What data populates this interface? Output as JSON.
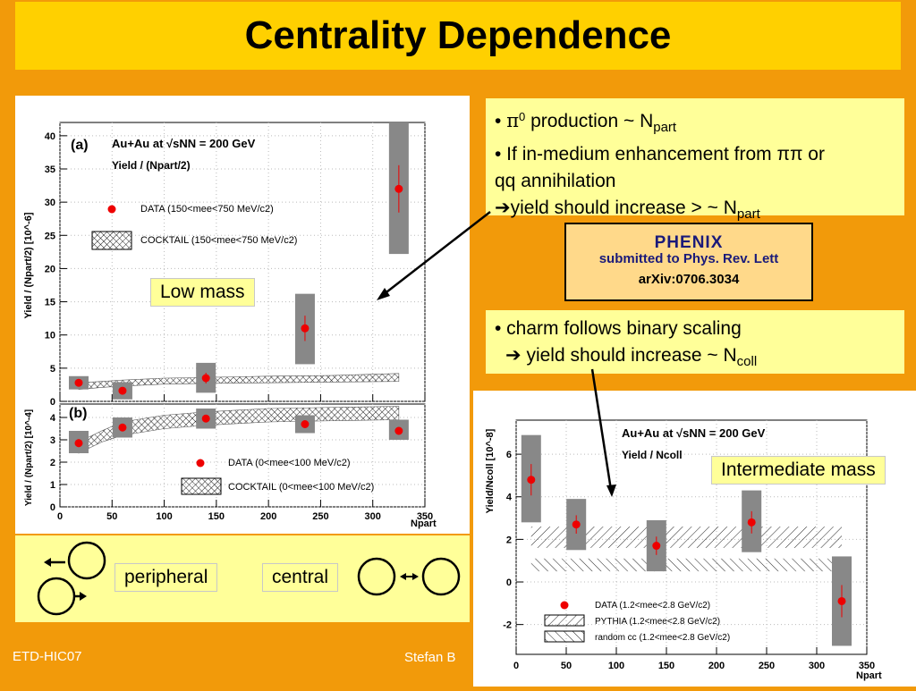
{
  "title": "Centrality Dependence",
  "bullets_top": {
    "line1_pre": "• ",
    "line1_pi": "π",
    "line1_sup": "0",
    "line1_text": " production ~ N",
    "line1_sub": "part",
    "line2": "• If in-medium enhancement from ππ or",
    "line3": "qq  annihilation",
    "line4_text": "yield should increase > ~ N",
    "line4_sub": "part"
  },
  "phenix": {
    "logo": "PHENIX",
    "line1": "submitted to Phys. Rev. Lett",
    "line2": "arXiv:0706.3034"
  },
  "bullets_charm": {
    "line1": "• charm follows binary scaling",
    "line2_text": " yield should increase ~ N",
    "line2_sub": "coll"
  },
  "labels": {
    "low_mass": "Low mass",
    "intermediate_mass": "Intermediate mass",
    "peripheral": "peripheral",
    "central": "central"
  },
  "footer": {
    "left": "ETD-HIC07",
    "center": "Stefan B"
  },
  "chart_data": [
    {
      "type": "scatter",
      "panel": "(a)",
      "header": "Au+Au at √sNN = 200 GeV",
      "subheader": "Yield / (Npart/2)",
      "ylabel": "Yield / (Npart/2) [10^-6]",
      "ylim": [
        0,
        42
      ],
      "yticks": [
        0,
        5,
        10,
        15,
        20,
        25,
        30,
        35,
        40
      ],
      "legend": [
        "DATA (150<mee<750 MeV/c2)",
        "COCKTAIL (150<mee<750 MeV/c2)"
      ],
      "points": [
        {
          "x": 18,
          "y": 2.8,
          "sys_lo": 1.8,
          "sys_hi": 3.8
        },
        {
          "x": 60,
          "y": 1.6,
          "sys_lo": 0.3,
          "sys_hi": 2.9
        },
        {
          "x": 140,
          "y": 3.5,
          "sys_lo": 1.3,
          "sys_hi": 5.8
        },
        {
          "x": 235,
          "y": 11.0,
          "sys_lo": 5.6,
          "sys_hi": 16.2
        },
        {
          "x": 325,
          "y": 32.0,
          "sys_lo": 22.2,
          "sys_hi": 42.0
        }
      ],
      "cocktail": {
        "x": [
          18,
          40,
          60,
          100,
          140,
          200,
          260,
          325
        ],
        "lo": [
          1.8,
          2.1,
          2.3,
          2.6,
          2.7,
          2.8,
          2.9,
          3.0
        ],
        "hi": [
          2.8,
          3.0,
          3.2,
          3.5,
          3.6,
          3.8,
          3.9,
          4.2
        ]
      }
    },
    {
      "type": "scatter",
      "panel": "(b)",
      "ylabel": "Yield / (Npart/2) [10^-4]",
      "xlabel": "Npart",
      "xlim": [
        0,
        350
      ],
      "xticks": [
        0,
        50,
        100,
        150,
        200,
        250,
        300,
        350
      ],
      "ylim": [
        0,
        4.6
      ],
      "yticks": [
        0,
        1,
        2,
        3,
        4
      ],
      "legend": [
        "DATA (0<mee<100 MeV/c2)",
        "COCKTAIL (0<mee<100 MeV/c2)"
      ],
      "points": [
        {
          "x": 18,
          "y": 2.85,
          "sys_lo": 2.4,
          "sys_hi": 3.4
        },
        {
          "x": 60,
          "y": 3.55,
          "sys_lo": 3.1,
          "sys_hi": 4.0
        },
        {
          "x": 140,
          "y": 3.95,
          "sys_lo": 3.5,
          "sys_hi": 4.4
        },
        {
          "x": 235,
          "y": 3.7,
          "sys_lo": 3.3,
          "sys_hi": 4.1
        },
        {
          "x": 325,
          "y": 3.4,
          "sys_lo": 3.0,
          "sys_hi": 3.9
        }
      ],
      "cocktail": {
        "x": [
          18,
          40,
          60,
          100,
          140,
          200,
          260,
          325
        ],
        "lo": [
          2.4,
          2.9,
          3.2,
          3.5,
          3.65,
          3.8,
          3.85,
          3.9
        ],
        "hi": [
          2.9,
          3.4,
          3.8,
          4.1,
          4.25,
          4.4,
          4.45,
          4.5
        ]
      }
    },
    {
      "type": "scatter",
      "header": "Au+Au at √sNN = 200 GeV",
      "subheader": "Yield / Ncoll",
      "ylabel": "Yield/Ncoll [10^-8]",
      "xlabel": "Npart",
      "xlim": [
        0,
        350
      ],
      "xticks": [
        0,
        50,
        100,
        150,
        200,
        250,
        300,
        350
      ],
      "ylim": [
        -3.4,
        7.6
      ],
      "yticks": [
        -2,
        0,
        2,
        4,
        6
      ],
      "legend": [
        "DATA (1.2<mee<2.8 GeV/c2)",
        "PYTHIA (1.2<mee<2.8 GeV/c2)",
        "random cc (1.2<mee<2.8 GeV/c2)"
      ],
      "points": [
        {
          "x": 15,
          "y": 4.8,
          "sys_lo": 2.8,
          "sys_hi": 6.9
        },
        {
          "x": 60,
          "y": 2.7,
          "sys_lo": 1.5,
          "sys_hi": 3.9
        },
        {
          "x": 140,
          "y": 1.7,
          "sys_lo": 0.5,
          "sys_hi": 2.9
        },
        {
          "x": 235,
          "y": 2.8,
          "sys_lo": 1.4,
          "sys_hi": 4.3
        },
        {
          "x": 325,
          "y": -0.9,
          "sys_lo": -3.0,
          "sys_hi": 1.2
        }
      ],
      "pythia_band": [
        1.6,
        2.6
      ],
      "random_cc_band": [
        0.5,
        1.1
      ]
    }
  ]
}
